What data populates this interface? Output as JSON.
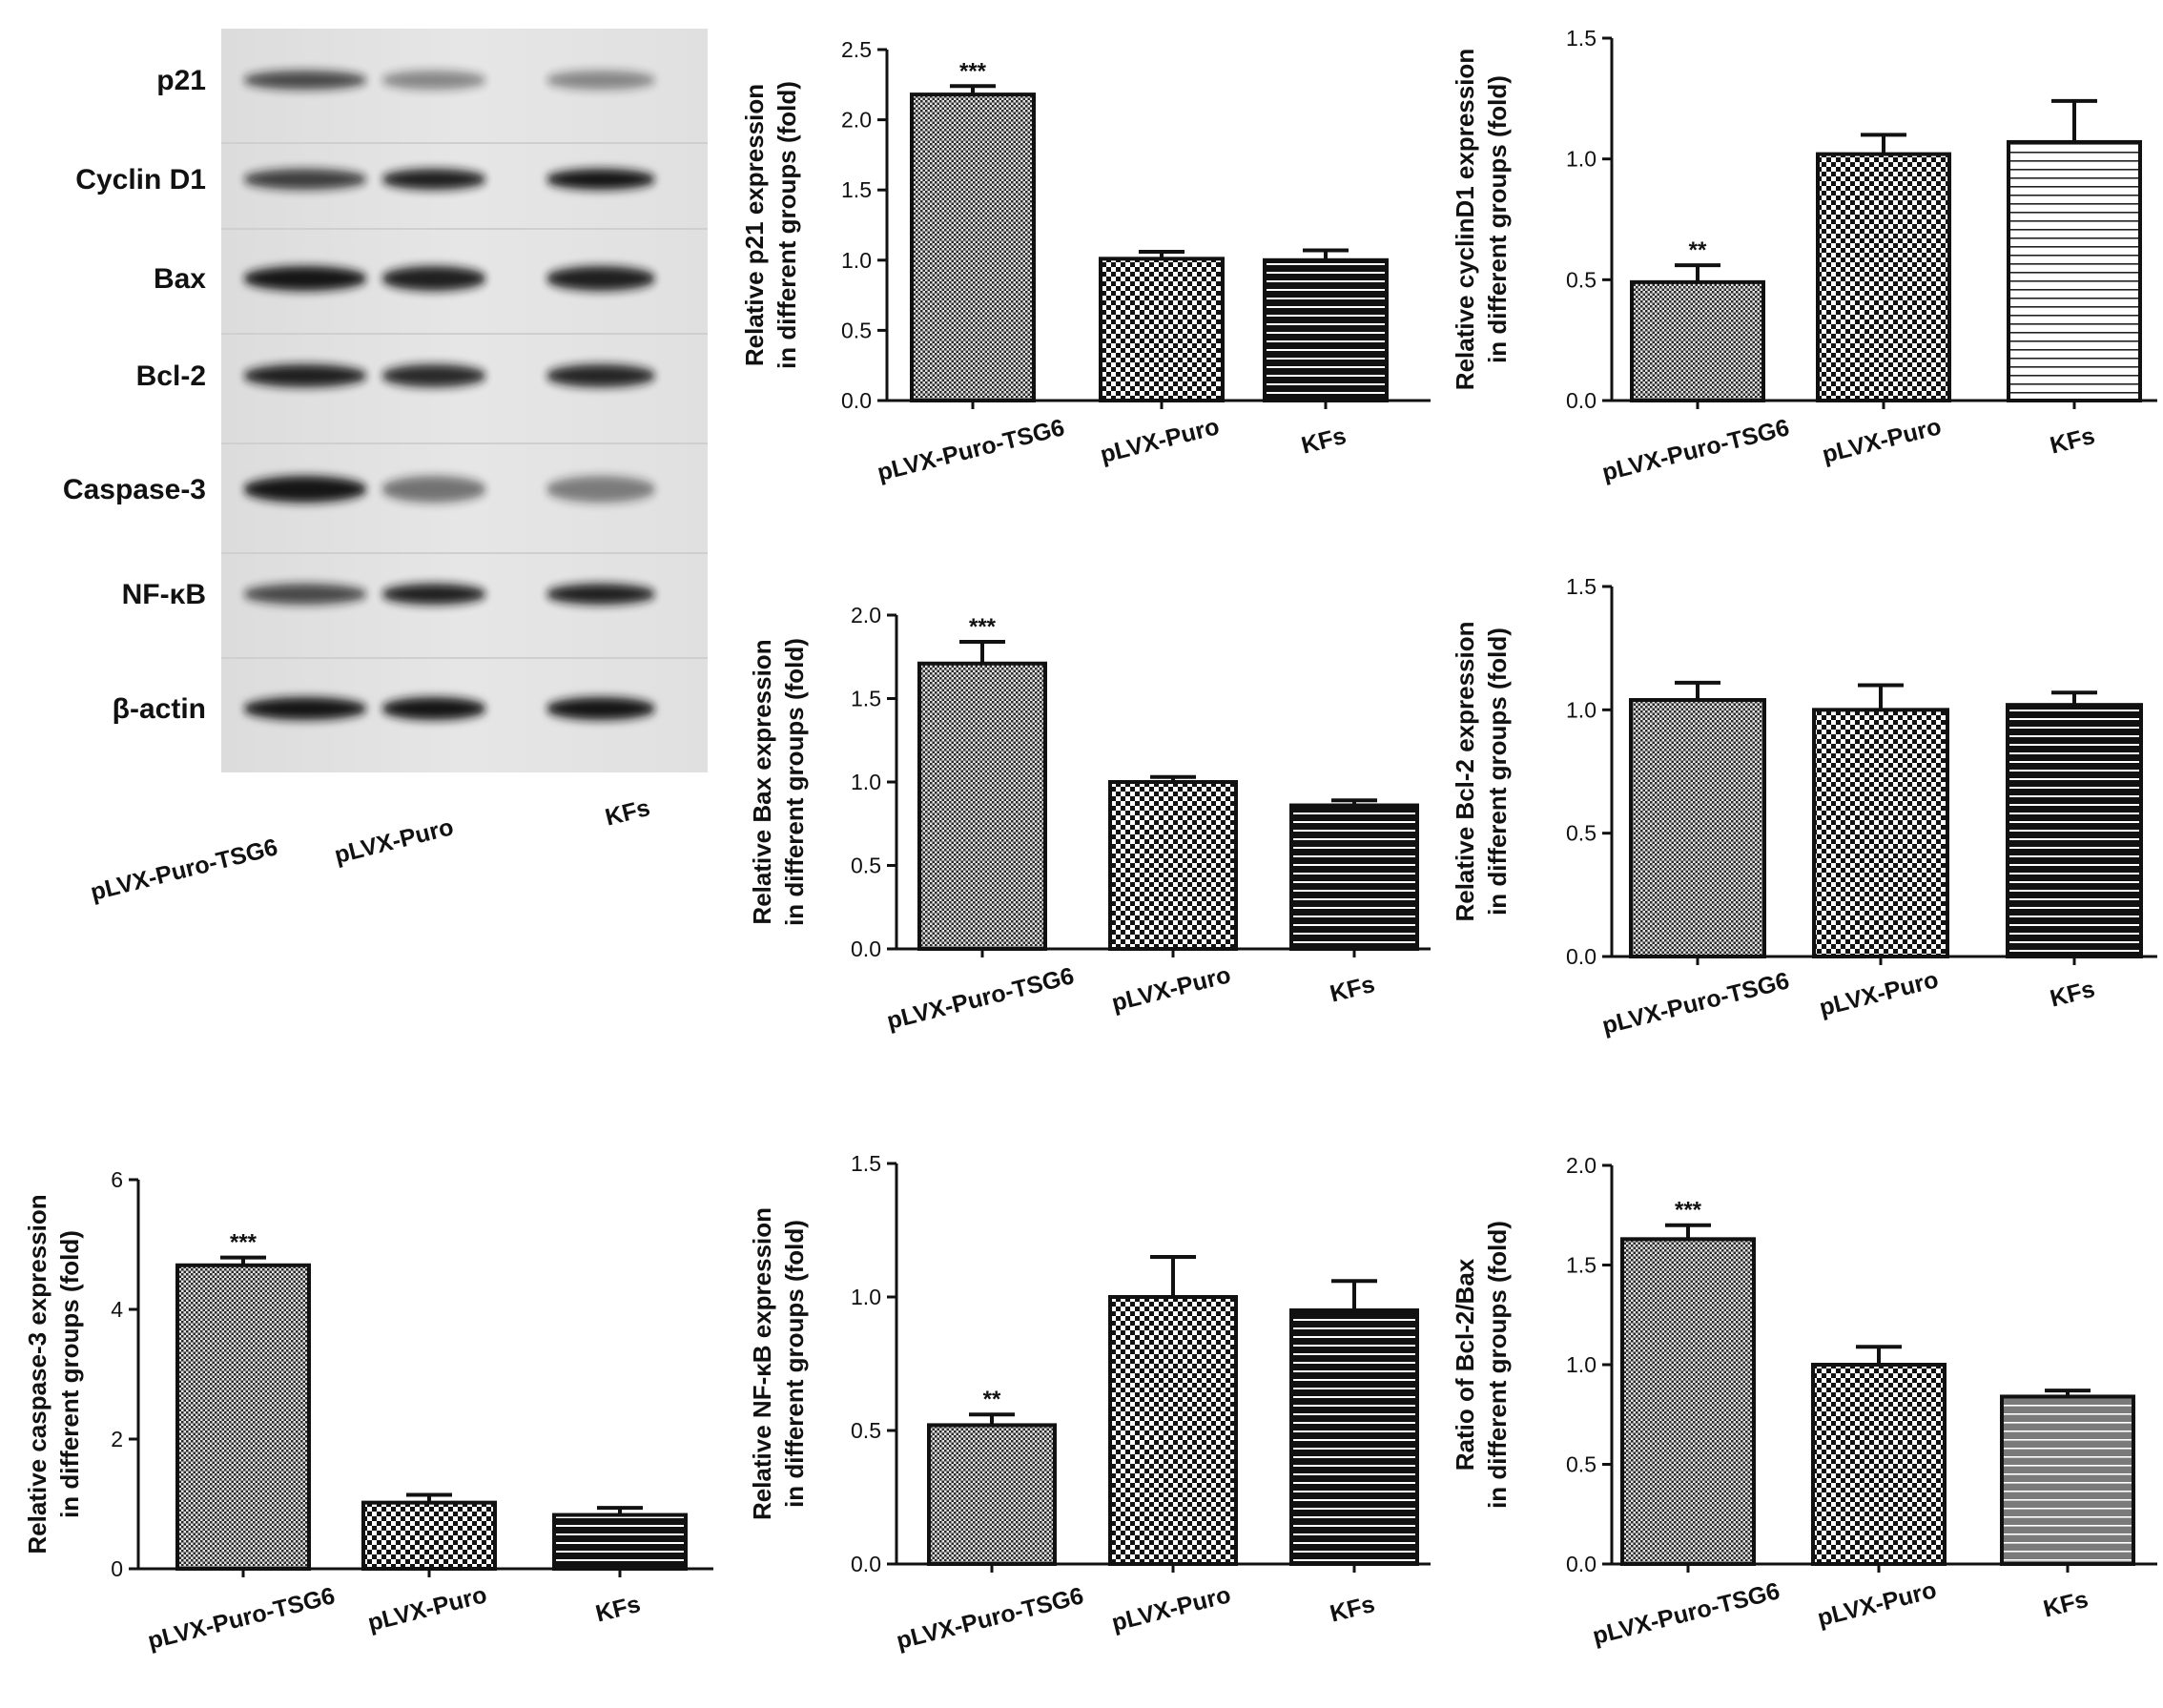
{
  "western_blot": {
    "rows": [
      "p21",
      "Cyclin D1",
      "Bax",
      "Bcl-2",
      "Caspase-3",
      "NF-κB",
      "β-actin"
    ],
    "lanes": [
      "pLVX-Puro-TSG6",
      "pLVX-Puro",
      "KFs"
    ]
  },
  "chart_data": [
    {
      "type": "bar",
      "id": "p21",
      "categories": [
        "pLVX-Puro-TSG6",
        "pLVX-Puro",
        "KFs"
      ],
      "values": [
        2.18,
        1.01,
        1.0
      ],
      "errors": [
        0.06,
        0.05,
        0.07
      ],
      "annotations": [
        "***",
        "",
        ""
      ],
      "patterns": [
        "dots",
        "checker",
        "hstripes-dark"
      ],
      "ylabel_lines": [
        "Relative  p21 expression",
        "in different groups (fold)"
      ],
      "ylim": [
        0,
        2.5
      ],
      "yticks": [
        "0.0",
        "0.5",
        "1.0",
        "1.5",
        "2.0",
        "2.5"
      ]
    },
    {
      "type": "bar",
      "id": "cyclind1",
      "categories": [
        "pLVX-Puro-TSG6",
        "pLVX-Puro",
        "KFs"
      ],
      "values": [
        0.49,
        1.02,
        1.07
      ],
      "errors": [
        0.07,
        0.08,
        0.17
      ],
      "annotations": [
        "**",
        "",
        ""
      ],
      "patterns": [
        "dots",
        "checker",
        "hstripes-light"
      ],
      "ylabel_lines": [
        "Relative  cyclinD1 expression",
        "in different groups (fold)"
      ],
      "ylim": [
        0,
        1.5
      ],
      "yticks": [
        "0.0",
        "0.5",
        "1.0",
        "1.5"
      ]
    },
    {
      "type": "bar",
      "id": "bax",
      "categories": [
        "pLVX-Puro-TSG6",
        "pLVX-Puro",
        "KFs"
      ],
      "values": [
        1.71,
        1.0,
        0.86
      ],
      "errors": [
        0.13,
        0.03,
        0.03
      ],
      "annotations": [
        "***",
        "",
        ""
      ],
      "patterns": [
        "dots",
        "checker",
        "hstripes-dark"
      ],
      "ylabel_lines": [
        "Relative  Bax expression",
        "in different groups (fold)"
      ],
      "ylim": [
        0,
        2.0
      ],
      "yticks": [
        "0.0",
        "0.5",
        "1.0",
        "1.5",
        "2.0"
      ]
    },
    {
      "type": "bar",
      "id": "bcl2",
      "categories": [
        "pLVX-Puro-TSG6",
        "pLVX-Puro",
        "KFs"
      ],
      "values": [
        1.04,
        1.0,
        1.02
      ],
      "errors": [
        0.07,
        0.1,
        0.05
      ],
      "annotations": [
        "",
        "",
        ""
      ],
      "patterns": [
        "dots",
        "checker",
        "hstripes-dark"
      ],
      "ylabel_lines": [
        "Relative  Bcl-2  expression",
        "in different groups (fold)"
      ],
      "ylim": [
        0,
        1.5
      ],
      "yticks": [
        "0.0",
        "0.5",
        "1.0",
        "1.5"
      ]
    },
    {
      "type": "bar",
      "id": "caspase3",
      "categories": [
        "pLVX-Puro-TSG6",
        "pLVX-Puro",
        "KFs"
      ],
      "values": [
        4.68,
        1.02,
        0.83
      ],
      "errors": [
        0.12,
        0.12,
        0.11
      ],
      "annotations": [
        "***",
        "",
        ""
      ],
      "patterns": [
        "dots",
        "checker",
        "hstripes-dark"
      ],
      "ylabel_lines": [
        "Relative  caspase-3  expression",
        "in different groups (fold)"
      ],
      "ylim": [
        0,
        6
      ],
      "yticks": [
        "0",
        "2",
        "4",
        "6"
      ]
    },
    {
      "type": "bar",
      "id": "nfkb",
      "categories": [
        "pLVX-Puro-TSG6",
        "pLVX-Puro",
        "KFs"
      ],
      "values": [
        0.52,
        1.0,
        0.95
      ],
      "errors": [
        0.04,
        0.15,
        0.11
      ],
      "annotations": [
        "**",
        "",
        ""
      ],
      "patterns": [
        "dots",
        "checker",
        "hstripes-dark"
      ],
      "ylabel_lines": [
        "Relative  NF-κB expression",
        "in different groups (fold)"
      ],
      "ylim": [
        0,
        1.5
      ],
      "yticks": [
        "0.0",
        "0.5",
        "1.0",
        "1.5"
      ]
    },
    {
      "type": "bar",
      "id": "ratio",
      "categories": [
        "pLVX-Puro-TSG6",
        "pLVX-Puro",
        "KFs"
      ],
      "values": [
        1.63,
        1.0,
        0.84
      ],
      "errors": [
        0.07,
        0.09,
        0.03
      ],
      "annotations": [
        "***",
        "",
        ""
      ],
      "patterns": [
        "dots",
        "checker",
        "hstripes-gray"
      ],
      "ylabel_lines": [
        "Ratio of Bcl-2/Bax",
        "in different groups (fold)"
      ],
      "ylim": [
        0,
        2.0
      ],
      "yticks": [
        "0.0",
        "0.5",
        "1.0",
        "1.5",
        "2.0"
      ]
    }
  ]
}
